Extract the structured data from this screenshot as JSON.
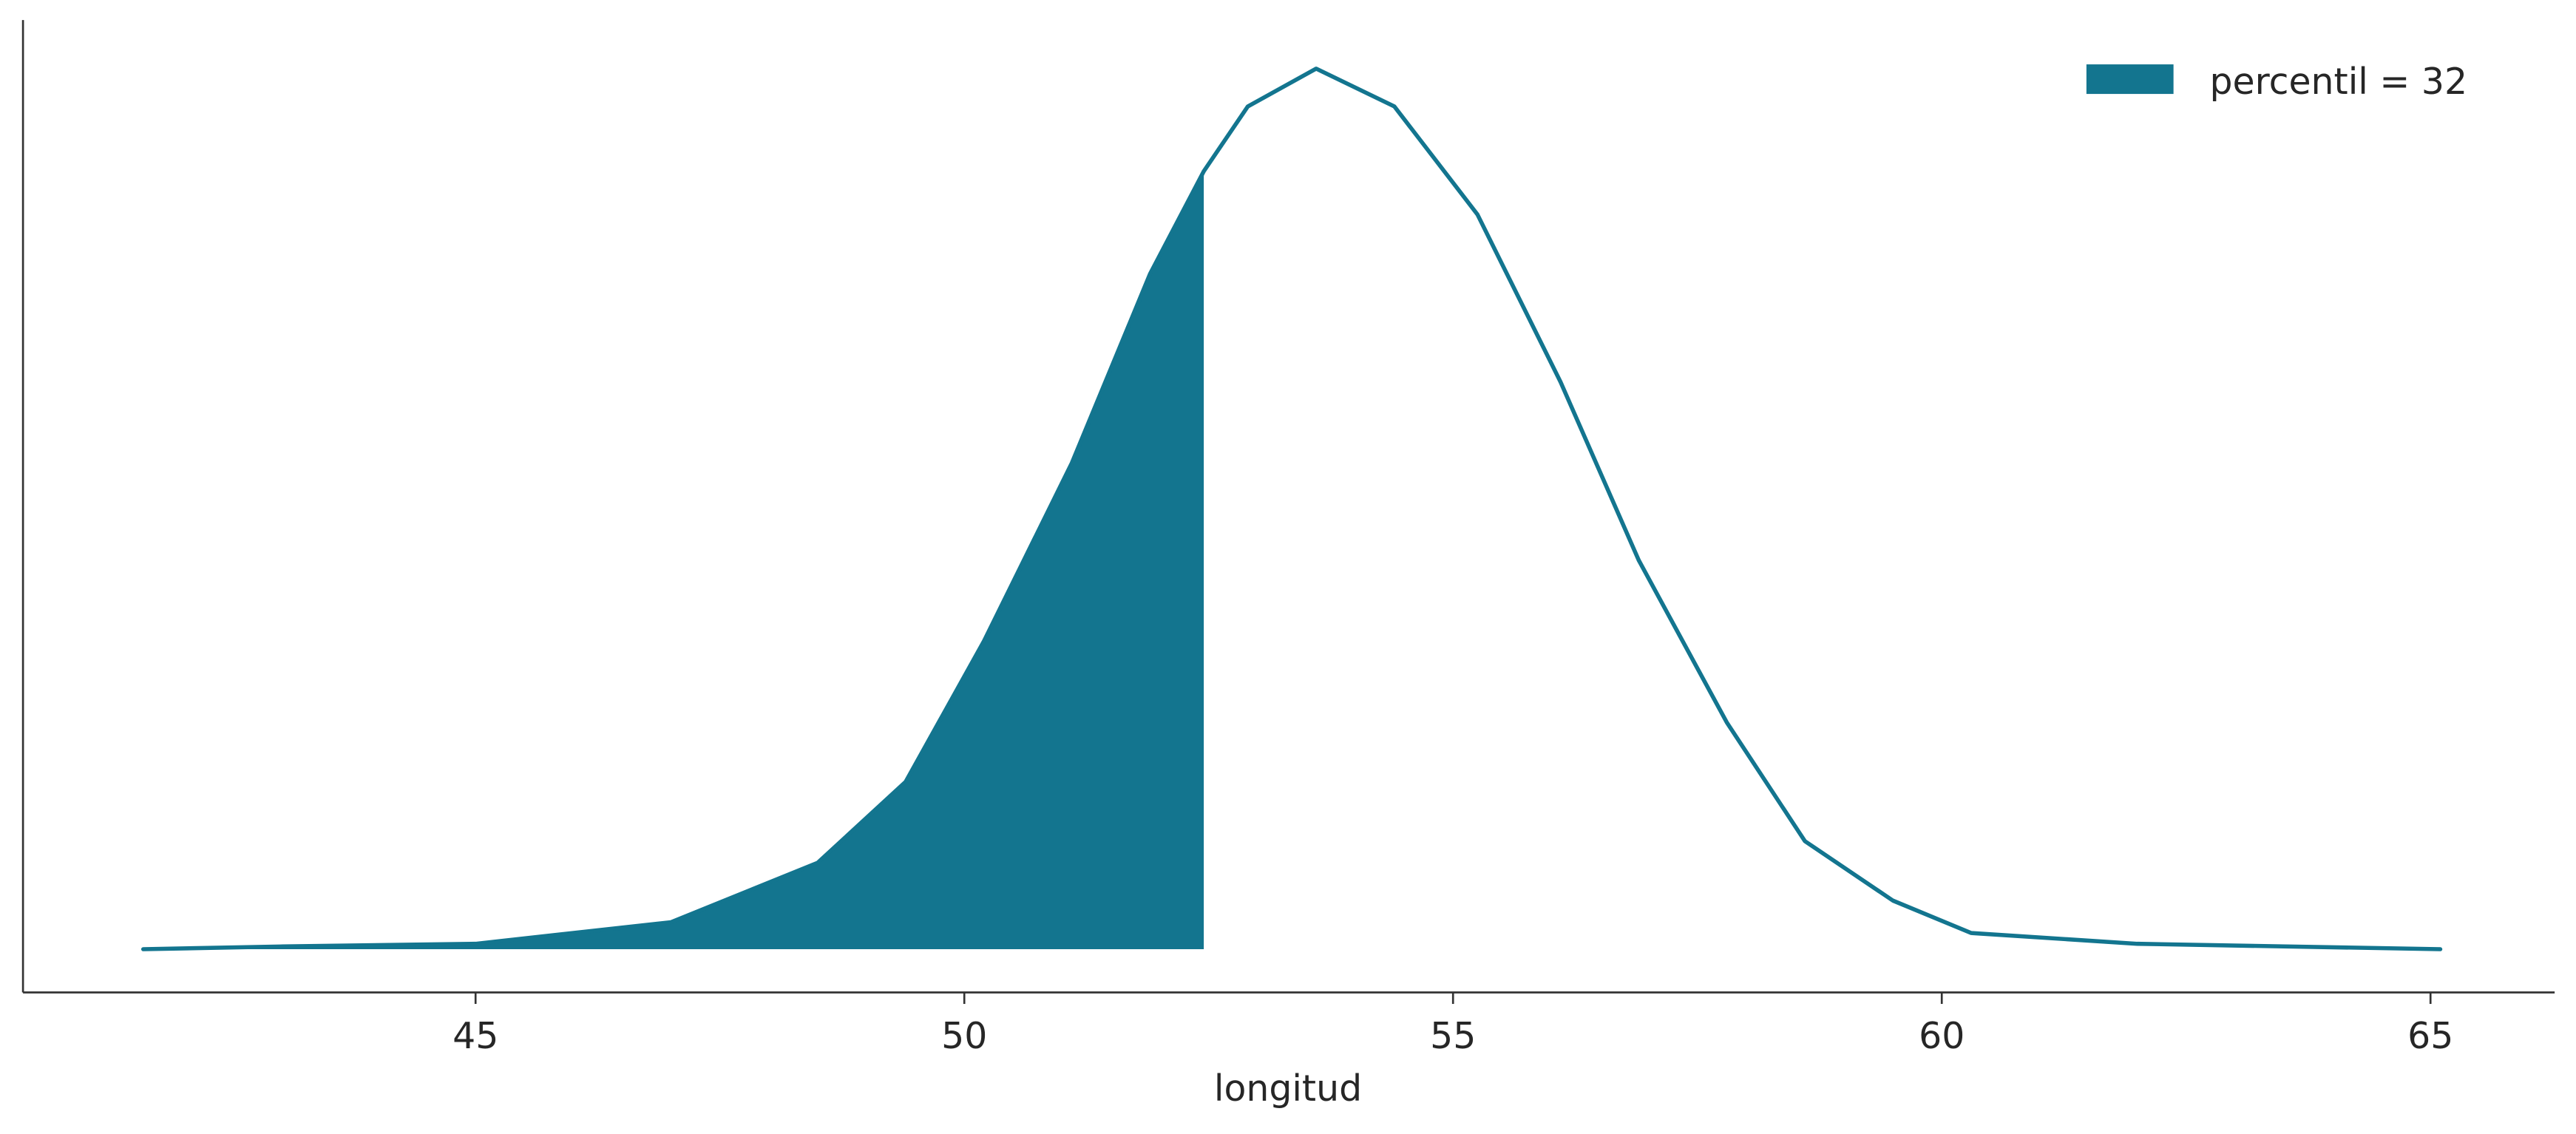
{
  "chart_data": {
    "type": "kde",
    "xlabel": "longitud",
    "x": [
      41.6,
      43,
      45,
      47,
      48.5,
      49.4,
      50.2,
      51.1,
      51.9,
      52.45,
      52.9,
      53.6,
      54.4,
      55.25,
      56.1,
      56.9,
      57.8,
      58.6,
      59.5,
      60.3,
      62,
      65.1
    ],
    "series": [
      {
        "name": "percentil = 32",
        "color": "#13758f",
        "values": [
          0,
          0.0005,
          0.001,
          0.005,
          0.016,
          0.031,
          0.057,
          0.09,
          0.125,
          0.144,
          0.156,
          0.163,
          0.156,
          0.136,
          0.105,
          0.072,
          0.042,
          0.02,
          0.009,
          0.003,
          0.001,
          0
        ]
      }
    ],
    "fill_until": 52.45,
    "xlim": [
      40.37,
      66.27
    ],
    "ylim": [
      -0.008,
      0.172
    ],
    "xticks": [
      45,
      50,
      55,
      60,
      65
    ],
    "legend": "upper right"
  }
}
